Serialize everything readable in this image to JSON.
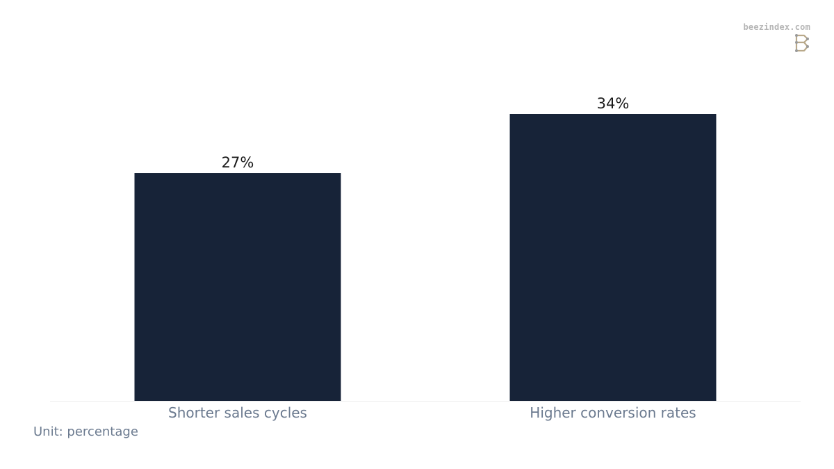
{
  "brand": {
    "site": "beezindex.com",
    "logo_icon": "b-logo-icon",
    "logo_color": "#b9a98a"
  },
  "footnote": "Unit: percentage",
  "chart_data": {
    "type": "bar",
    "categories": [
      "Shorter sales cycles",
      "Higher conversion rates"
    ],
    "values": [
      27,
      34
    ],
    "value_labels": [
      "27%",
      "34%"
    ],
    "title": "",
    "xlabel": "",
    "ylabel": "",
    "ylim": [
      0,
      34
    ],
    "grid": false,
    "legend": "none",
    "bar_color": "#172338",
    "baseline_color": "#f0f0f0"
  }
}
